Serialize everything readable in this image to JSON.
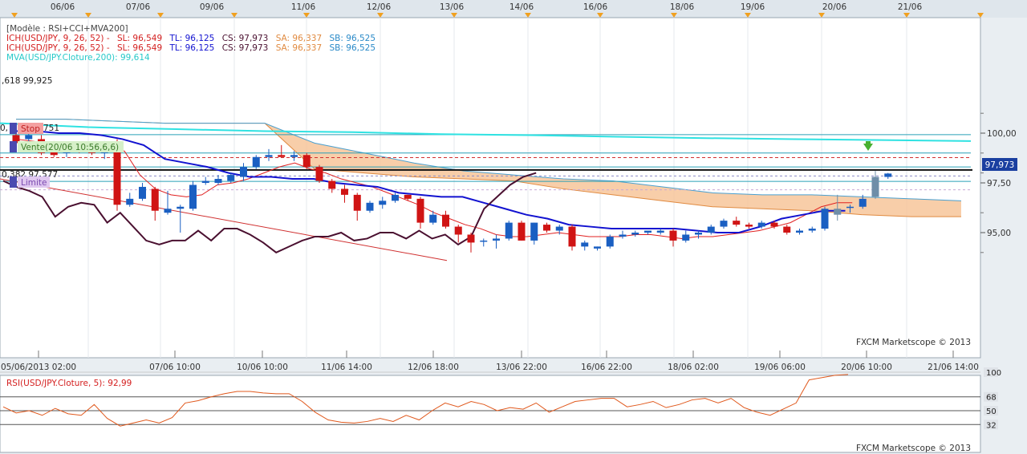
{
  "top_dates": [
    "06/06",
    "07/06",
    "09/06",
    "11/06",
    "12/06",
    "13/06",
    "14/06",
    "16/06",
    "18/06",
    "19/06",
    "20/06",
    "21/06"
  ],
  "bottom_dates": [
    "05/06/2013 02:00",
    "07/06 10:00",
    "10/06 10:00",
    "11/06 14:00",
    "12/06 18:00",
    "13/06 22:00",
    "16/06 22:00",
    "18/06 02:00",
    "19/06 06:00",
    "20/06 10:00",
    "21/06 14:00"
  ],
  "legend": {
    "model": "[Modèle : RSI+CCI+MVA200]",
    "ich1": {
      "name": "ICH(USD/JPY, 9, 26, 52) -",
      "sl": "SL: 96,549",
      "tl": "TL: 96,125",
      "cs": "CS: 97,973",
      "sa": "SA: 96,337",
      "sb": "SB: 96,525"
    },
    "ich2": {
      "name": "ICH(USD/JPY, 9, 26, 52) -",
      "sl": "SL: 96,549",
      "tl": "TL: 96,125",
      "cs": "CS: 97,973",
      "sa": "SA: 96,337",
      "sb": "SB: 96,525"
    },
    "mva": "MVA(USD/JPY.Cloture,200): 99,614"
  },
  "annotations": {
    "fib_top": ",618 99,925",
    "stop_prefix": "0,",
    "stop": "Stop",
    "stop_suffix": "751",
    "sell": "Vente(20/06 10:56,6,6)",
    "fib_mid": "0,382 97,577",
    "limit": "Limite"
  },
  "watermark": "FXCM Marketscope © 2013",
  "price_axis": {
    "labels": [
      "100,00",
      "97,50",
      "95,00"
    ],
    "current": "97,973"
  },
  "rsi": {
    "title": "RSI(USD/JPY.Cloture, 5): 92,99",
    "labels": [
      "100",
      "68",
      "50",
      "32"
    ]
  },
  "colors": {
    "bull": "#1a5fc2",
    "bear": "#d01414",
    "neutral": "#6f8ea8",
    "tenkan": "#e02020",
    "kijun": "#1212d0",
    "chikou": "#4a1030",
    "mva": "#2fe2e2",
    "cloud": "#f7c69a",
    "cloud_edge": "#4aa0d0",
    "rsi": "#e0581c"
  },
  "chart_data": {
    "type": "candlestick",
    "symbol": "USD/JPY",
    "x_dates": [
      "06/06",
      "07/06",
      "09/06",
      "11/06",
      "12/06",
      "13/06",
      "14/06",
      "16/06",
      "18/06",
      "19/06",
      "20/06",
      "21/06"
    ],
    "y_ticks": [
      "100,00",
      "97,50",
      "95,00"
    ],
    "ylim": [
      93.4,
      101.6
    ],
    "candles": [
      {
        "o": 99.9,
        "h": 100.1,
        "l": 99.4,
        "c": 99.5
      },
      {
        "o": 99.7,
        "h": 100.1,
        "l": 99.5,
        "c": 99.9
      },
      {
        "o": 99.7,
        "h": 99.9,
        "l": 98.9,
        "c": 99.0
      },
      {
        "o": 99.5,
        "h": 99.6,
        "l": 98.8,
        "c": 98.9
      },
      {
        "o": 99.0,
        "h": 99.5,
        "l": 98.8,
        "c": 99.3
      },
      {
        "o": 99.3,
        "h": 99.4,
        "l": 99.0,
        "c": 99.2
      },
      {
        "o": 99.2,
        "h": 99.4,
        "l": 98.9,
        "c": 99.0
      },
      {
        "o": 99.0,
        "h": 99.6,
        "l": 98.7,
        "c": 99.2
      },
      {
        "o": 99.2,
        "h": 99.7,
        "l": 96.1,
        "c": 96.4
      },
      {
        "o": 96.4,
        "h": 97.0,
        "l": 96.3,
        "c": 96.7
      },
      {
        "o": 96.7,
        "h": 97.5,
        "l": 96.6,
        "c": 97.3
      },
      {
        "o": 97.2,
        "h": 97.3,
        "l": 95.6,
        "c": 96.1
      },
      {
        "o": 96.0,
        "h": 97.1,
        "l": 95.9,
        "c": 96.2
      },
      {
        "o": 96.2,
        "h": 96.4,
        "l": 95.0,
        "c": 96.3
      },
      {
        "o": 96.2,
        "h": 97.6,
        "l": 96.1,
        "c": 97.4
      },
      {
        "o": 97.5,
        "h": 97.8,
        "l": 97.4,
        "c": 97.6
      },
      {
        "o": 97.5,
        "h": 97.9,
        "l": 97.4,
        "c": 97.7
      },
      {
        "o": 97.6,
        "h": 98.0,
        "l": 97.5,
        "c": 97.9
      },
      {
        "o": 97.8,
        "h": 98.5,
        "l": 97.6,
        "c": 98.3
      },
      {
        "o": 98.3,
        "h": 98.9,
        "l": 98.2,
        "c": 98.8
      },
      {
        "o": 98.8,
        "h": 99.2,
        "l": 98.6,
        "c": 98.9
      },
      {
        "o": 98.9,
        "h": 99.4,
        "l": 98.8,
        "c": 98.8
      },
      {
        "o": 98.8,
        "h": 99.1,
        "l": 98.6,
        "c": 98.9
      },
      {
        "o": 98.9,
        "h": 99.0,
        "l": 98.2,
        "c": 98.3
      },
      {
        "o": 98.3,
        "h": 98.4,
        "l": 97.5,
        "c": 97.6
      },
      {
        "o": 97.6,
        "h": 97.7,
        "l": 97.0,
        "c": 97.2
      },
      {
        "o": 97.2,
        "h": 97.4,
        "l": 96.5,
        "c": 96.9
      },
      {
        "o": 96.9,
        "h": 97.0,
        "l": 95.6,
        "c": 96.1
      },
      {
        "o": 96.1,
        "h": 96.6,
        "l": 96.0,
        "c": 96.5
      },
      {
        "o": 96.4,
        "h": 96.8,
        "l": 96.2,
        "c": 96.6
      },
      {
        "o": 96.6,
        "h": 97.0,
        "l": 96.5,
        "c": 96.9
      },
      {
        "o": 96.9,
        "h": 96.9,
        "l": 96.6,
        "c": 96.7
      },
      {
        "o": 96.7,
        "h": 96.8,
        "l": 95.2,
        "c": 95.5
      },
      {
        "o": 95.5,
        "h": 96.1,
        "l": 95.4,
        "c": 95.9
      },
      {
        "o": 95.9,
        "h": 96.1,
        "l": 95.2,
        "c": 95.3
      },
      {
        "o": 95.3,
        "h": 95.4,
        "l": 94.5,
        "c": 94.9
      },
      {
        "o": 94.9,
        "h": 95.0,
        "l": 94.0,
        "c": 94.5
      },
      {
        "o": 94.6,
        "h": 94.7,
        "l": 94.3,
        "c": 94.6
      },
      {
        "o": 94.6,
        "h": 94.9,
        "l": 94.2,
        "c": 94.7
      },
      {
        "o": 94.7,
        "h": 95.6,
        "l": 94.6,
        "c": 95.5
      },
      {
        "o": 95.5,
        "h": 95.6,
        "l": 94.6,
        "c": 94.6
      },
      {
        "o": 94.6,
        "h": 95.5,
        "l": 94.4,
        "c": 95.5
      },
      {
        "o": 95.4,
        "h": 95.5,
        "l": 95.0,
        "c": 95.1
      },
      {
        "o": 95.1,
        "h": 95.4,
        "l": 94.9,
        "c": 95.3
      },
      {
        "o": 95.3,
        "h": 95.4,
        "l": 94.1,
        "c": 94.3
      },
      {
        "o": 94.3,
        "h": 94.6,
        "l": 94.1,
        "c": 94.5
      },
      {
        "o": 94.2,
        "h": 94.3,
        "l": 94.1,
        "c": 94.3
      },
      {
        "o": 94.3,
        "h": 94.9,
        "l": 94.2,
        "c": 94.8
      },
      {
        "o": 94.8,
        "h": 95.1,
        "l": 94.7,
        "c": 94.9
      },
      {
        "o": 94.9,
        "h": 95.1,
        "l": 94.8,
        "c": 95.0
      },
      {
        "o": 95.0,
        "h": 95.1,
        "l": 94.9,
        "c": 95.1
      },
      {
        "o": 95.0,
        "h": 95.2,
        "l": 94.9,
        "c": 95.1
      },
      {
        "o": 95.1,
        "h": 95.2,
        "l": 94.3,
        "c": 94.6
      },
      {
        "o": 94.6,
        "h": 95.1,
        "l": 94.5,
        "c": 94.9
      },
      {
        "o": 94.9,
        "h": 95.1,
        "l": 94.7,
        "c": 95.0
      },
      {
        "o": 95.0,
        "h": 95.4,
        "l": 94.9,
        "c": 95.3
      },
      {
        "o": 95.3,
        "h": 95.7,
        "l": 95.2,
        "c": 95.6
      },
      {
        "o": 95.6,
        "h": 95.8,
        "l": 95.3,
        "c": 95.4
      },
      {
        "o": 95.4,
        "h": 95.5,
        "l": 95.2,
        "c": 95.3
      },
      {
        "o": 95.3,
        "h": 95.6,
        "l": 95.2,
        "c": 95.5
      },
      {
        "o": 95.5,
        "h": 95.6,
        "l": 95.2,
        "c": 95.3
      },
      {
        "o": 95.3,
        "h": 95.4,
        "l": 94.9,
        "c": 95.0
      },
      {
        "o": 95.0,
        "h": 95.2,
        "l": 94.9,
        "c": 95.1
      },
      {
        "o": 95.1,
        "h": 95.3,
        "l": 95.0,
        "c": 95.2
      },
      {
        "o": 95.2,
        "h": 96.3,
        "l": 95.1,
        "c": 96.2
      },
      {
        "o": 96.2,
        "h": 96.9,
        "l": 95.6,
        "c": 95.9
      },
      {
        "o": 96.3,
        "h": 96.4,
        "l": 96.0,
        "c": 96.3
      },
      {
        "o": 96.3,
        "h": 96.9,
        "l": 96.2,
        "c": 96.7
      },
      {
        "o": 96.8,
        "h": 98.1,
        "l": 96.7,
        "c": 97.8
      },
      {
        "o": 97.8,
        "h": 98.0,
        "l": 97.7,
        "c": 97.97
      }
    ],
    "neutral_candles": [
      65,
      68
    ],
    "tenkan": [
      99.7,
      99.6,
      99.5,
      99.5,
      99.3,
      99.2,
      99.2,
      99.1,
      97.9,
      97.2,
      96.9,
      96.8,
      96.9,
      97.4,
      97.5,
      97.7,
      98.0,
      98.3,
      98.5,
      98.2,
      98.0,
      97.7,
      97.5,
      97.3,
      97.0,
      96.7,
      96.4,
      96.0,
      95.7,
      95.4,
      95.2,
      94.9,
      94.8,
      94.8,
      94.9,
      95.0,
      94.9,
      94.8,
      94.8,
      94.8,
      94.9,
      94.9,
      94.8,
      94.7,
      94.8,
      94.8,
      94.9,
      95.0,
      95.1,
      95.3,
      95.5,
      95.9,
      96.3,
      96.5,
      96.5
    ],
    "kijun": [
      100.1,
      100.1,
      100.0,
      100.0,
      99.9,
      99.7,
      99.4,
      98.7,
      98.5,
      98.3,
      98.0,
      97.8,
      97.8,
      97.7,
      97.7,
      97.5,
      97.4,
      97.3,
      97.0,
      96.9,
      96.8,
      96.8,
      96.5,
      96.2,
      95.9,
      95.7,
      95.4,
      95.3,
      95.2,
      95.2,
      95.2,
      95.2,
      95.1,
      95.0,
      95.0,
      95.3,
      95.7,
      95.9,
      96.1,
      96.1
    ],
    "chikou": [
      97.6,
      97.3,
      97.1,
      96.8,
      95.8,
      96.3,
      96.5,
      96.4,
      95.5,
      96.0,
      95.3,
      94.6,
      94.4,
      94.6,
      94.6,
      95.1,
      94.6,
      95.2,
      95.2,
      94.9,
      94.5,
      94.0,
      94.3,
      94.6,
      94.8,
      94.8,
      95.0,
      94.6,
      94.7,
      95.0,
      95.0,
      94.7,
      95.1,
      94.7,
      94.9,
      94.4,
      94.8,
      96.2,
      96.8,
      97.4,
      97.8,
      98.0
    ],
    "mva200": [
      100.5,
      100.3,
      100.2,
      100.1,
      100.05,
      99.95,
      99.9,
      99.82,
      99.75,
      99.7,
      99.65,
      99.6
    ],
    "senkou_a": [
      100.7,
      100.7,
      100.6,
      100.5,
      100.5,
      100.5,
      98.2,
      98.0,
      97.8,
      97.7,
      97.6,
      97.2,
      96.9,
      96.6,
      96.3,
      96.2,
      96.1,
      95.9,
      95.8,
      95.8
    ],
    "senkou_b": [
      100.7,
      100.7,
      100.6,
      100.5,
      100.5,
      100.5,
      99.5,
      99.0,
      98.5,
      98.1,
      97.9,
      97.7,
      97.6,
      97.3,
      97.0,
      96.9,
      96.9,
      96.8,
      96.7,
      96.6
    ],
    "fib_levels": [
      {
        "label": "0,618",
        "value": 99.925
      },
      {
        "label": "0,382",
        "value": 97.577
      }
    ],
    "horizontal_lines": [
      99.925,
      99.0,
      98.3,
      97.577
    ],
    "stop_level": 98.77,
    "entry_level": 98.15,
    "limit_level": 97.5,
    "rsi_series": [
      55,
      47,
      50,
      44,
      53,
      46,
      44,
      58,
      40,
      30,
      34,
      38,
      34,
      41,
      60,
      63,
      68,
      72,
      75,
      75,
      73,
      72,
      72,
      62,
      48,
      38,
      35,
      34,
      36,
      40,
      36,
      44,
      38,
      50,
      60,
      55,
      62,
      58,
      50,
      54,
      52,
      60,
      48,
      55,
      62,
      64,
      66,
      66,
      55,
      58,
      62,
      54,
      58,
      64,
      66,
      60,
      66,
      54,
      48,
      44,
      52,
      60,
      90,
      93,
      96,
      97
    ],
    "rsi_ylim": [
      0,
      100
    ]
  }
}
